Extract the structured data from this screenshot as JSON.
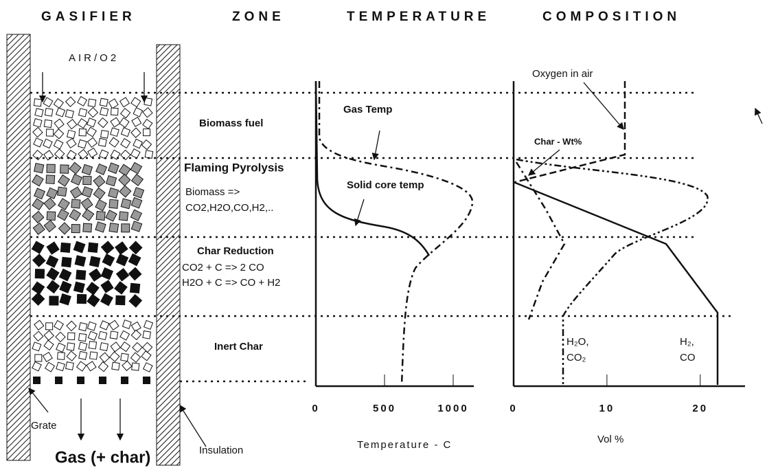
{
  "header": {
    "gasifier": "GASIFIER",
    "zone": "ZONE",
    "temperature": "TEMPERATURE",
    "composition": "COMPOSITION"
  },
  "gasifier": {
    "inlet": "AIR/O2",
    "grate": "Grate",
    "insulation": "Insulation",
    "outlet": "Gas (+ char)"
  },
  "zones": [
    {
      "label": "Biomass fuel"
    },
    {
      "label": "Flaming Pyrolysis",
      "lines": [
        "Biomass =>",
        "CO2,H2O,CO,H2,.."
      ]
    },
    {
      "label": "Char Reduction",
      "lines": [
        "CO2 + C => 2 CO",
        "H2O + C => CO + H2"
      ]
    },
    {
      "label": "Inert Char"
    }
  ],
  "temperature_plot": {
    "xlabel": "Temperature - C",
    "xlim": [
      0,
      1150
    ],
    "xticks": [
      0,
      500,
      1000
    ],
    "annotations": [
      "Gas Temp",
      "Solid core temp"
    ]
  },
  "composition_plot": {
    "xlabel": "Vol %",
    "xlim": [
      0,
      24.8
    ],
    "xticks": [
      0,
      10,
      20
    ],
    "annotations": [
      "Oxygen in air",
      "Char - Wt%",
      "H₂O,",
      "CO₂",
      "H₂,",
      "CO"
    ]
  }
}
